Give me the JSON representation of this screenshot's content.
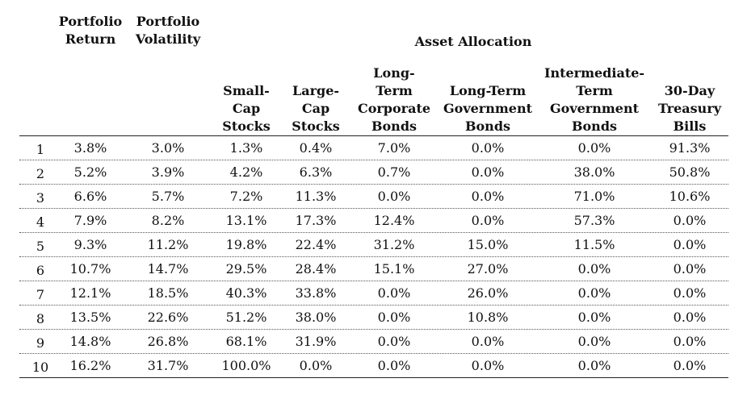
{
  "table": {
    "headers": {
      "portfolio_return": "Portfolio\nReturn",
      "portfolio_volatility": "Portfolio\nVolatility",
      "asset_allocation": "Asset Allocation",
      "small_cap": "Small-\nCap\nStocks",
      "large_cap": "Large-\nCap\nStocks",
      "lt_corp": "Long-\nTerm\nCorporate\nBonds",
      "lt_gov": "Long-Term\nGovernment\nBonds",
      "it_gov": "Intermediate-\nTerm\nGovernment\nBonds",
      "tbills": "30-Day\nTreasury\nBills"
    },
    "rows": [
      {
        "n": "1",
        "ret": "3.8%",
        "vol": "3.0%",
        "sc": "1.3%",
        "lc": "0.4%",
        "ltc": "7.0%",
        "ltg": "0.0%",
        "itg": "0.0%",
        "tb": "91.3%"
      },
      {
        "n": "2",
        "ret": "5.2%",
        "vol": "3.9%",
        "sc": "4.2%",
        "lc": "6.3%",
        "ltc": "0.7%",
        "ltg": "0.0%",
        "itg": "38.0%",
        "tb": "50.8%"
      },
      {
        "n": "3",
        "ret": "6.6%",
        "vol": "5.7%",
        "sc": "7.2%",
        "lc": "11.3%",
        "ltc": "0.0%",
        "ltg": "0.0%",
        "itg": "71.0%",
        "tb": "10.6%"
      },
      {
        "n": "4",
        "ret": "7.9%",
        "vol": "8.2%",
        "sc": "13.1%",
        "lc": "17.3%",
        "ltc": "12.4%",
        "ltg": "0.0%",
        "itg": "57.3%",
        "tb": "0.0%"
      },
      {
        "n": "5",
        "ret": "9.3%",
        "vol": "11.2%",
        "sc": "19.8%",
        "lc": "22.4%",
        "ltc": "31.2%",
        "ltg": "15.0%",
        "itg": "11.5%",
        "tb": "0.0%"
      },
      {
        "n": "6",
        "ret": "10.7%",
        "vol": "14.7%",
        "sc": "29.5%",
        "lc": "28.4%",
        "ltc": "15.1%",
        "ltg": "27.0%",
        "itg": "0.0%",
        "tb": "0.0%"
      },
      {
        "n": "7",
        "ret": "12.1%",
        "vol": "18.5%",
        "sc": "40.3%",
        "lc": "33.8%",
        "ltc": "0.0%",
        "ltg": "26.0%",
        "itg": "0.0%",
        "tb": "0.0%"
      },
      {
        "n": "8",
        "ret": "13.5%",
        "vol": "22.6%",
        "sc": "51.2%",
        "lc": "38.0%",
        "ltc": "0.0%",
        "ltg": "10.8%",
        "itg": "0.0%",
        "tb": "0.0%"
      },
      {
        "n": "9",
        "ret": "14.8%",
        "vol": "26.8%",
        "sc": "68.1%",
        "lc": "31.9%",
        "ltc": "0.0%",
        "ltg": "0.0%",
        "itg": "0.0%",
        "tb": "0.0%"
      },
      {
        "n": "10",
        "ret": "16.2%",
        "vol": "31.7%",
        "sc": "100.0%",
        "lc": "0.0%",
        "ltc": "0.0%",
        "ltg": "0.0%",
        "itg": "0.0%",
        "tb": "0.0%"
      }
    ]
  }
}
